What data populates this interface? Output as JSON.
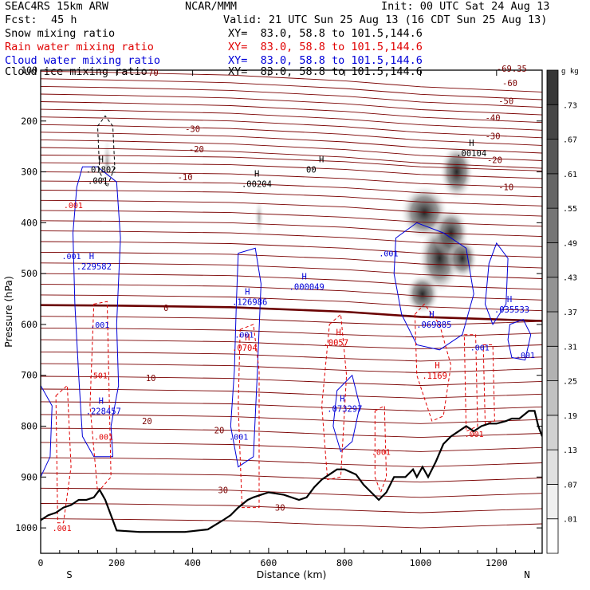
{
  "header": {
    "model": "SEAC4RS 15km ARW",
    "org": "NCAR/MMM",
    "init": "Init: 00 UTC Sat 24 Aug 13",
    "fcst_label": "Fcst:",
    "fcst_value": "45 h",
    "valid": "Valid: 21 UTC Sun 25 Aug 13 (16 CDT Sun 25 Aug 13)"
  },
  "fields": [
    {
      "name": "Snow mixing ratio",
      "xy": "XY=  83.0, 58.8 to 101.5,144.6",
      "color": "#000000"
    },
    {
      "name": "Rain water mixing ratio",
      "xy": "XY=  83.0, 58.8 to 101.5,144.6",
      "color": "#e00000"
    },
    {
      "name": "Cloud water mixing ratio",
      "xy": "XY=  83.0, 58.8 to 101.5,144.6",
      "color": "#0000d8"
    },
    {
      "name": "Cloud ice mixing ratio",
      "xy": "XY=  83.0, 58.8 to 101.5,144.6",
      "color": "#000000"
    }
  ],
  "chart_data": {
    "type": "heatmap",
    "title": "",
    "xlabel": "Distance (km)",
    "ylabel": "Pressure (hPa)",
    "xlim": [
      0,
      1320
    ],
    "ylim": [
      1050,
      100
    ],
    "y_scale": "linear (pressure, inverted)",
    "x_ticks": [
      0,
      200,
      400,
      600,
      800,
      1000,
      1200
    ],
    "y_ticks": [
      1000,
      900,
      800,
      700,
      600,
      500,
      400,
      300,
      200,
      100
    ],
    "x_end_labels": {
      "left": "S",
      "right": "N"
    },
    "colorbar": {
      "unit": "g kg",
      "unit_exp": "-1",
      "ticks": [
        ".01",
        ".07",
        ".13",
        ".19",
        ".25",
        ".31",
        ".37",
        ".43",
        ".49",
        ".55",
        ".61",
        ".67",
        ".73"
      ],
      "colormap": "white-to-black grayscale"
    },
    "terrain_hPa": [
      [
        0,
        985
      ],
      [
        20,
        975
      ],
      [
        40,
        970
      ],
      [
        60,
        960
      ],
      [
        80,
        955
      ],
      [
        100,
        945
      ],
      [
        120,
        945
      ],
      [
        140,
        940
      ],
      [
        155,
        925
      ],
      [
        170,
        945
      ],
      [
        185,
        975
      ],
      [
        200,
        1005
      ],
      [
        260,
        1008
      ],
      [
        300,
        1008
      ],
      [
        380,
        1008
      ],
      [
        440,
        1003
      ],
      [
        480,
        985
      ],
      [
        500,
        975
      ],
      [
        520,
        960
      ],
      [
        545,
        945
      ],
      [
        560,
        940
      ],
      [
        580,
        935
      ],
      [
        600,
        930
      ],
      [
        640,
        935
      ],
      [
        680,
        945
      ],
      [
        700,
        940
      ],
      [
        720,
        920
      ],
      [
        740,
        905
      ],
      [
        760,
        895
      ],
      [
        780,
        885
      ],
      [
        800,
        885
      ],
      [
        830,
        895
      ],
      [
        850,
        915
      ],
      [
        870,
        930
      ],
      [
        890,
        945
      ],
      [
        910,
        930
      ],
      [
        930,
        900
      ],
      [
        960,
        900
      ],
      [
        980,
        885
      ],
      [
        990,
        900
      ],
      [
        1005,
        880
      ],
      [
        1020,
        900
      ],
      [
        1040,
        870
      ],
      [
        1060,
        835
      ],
      [
        1080,
        820
      ],
      [
        1100,
        810
      ],
      [
        1120,
        800
      ],
      [
        1140,
        810
      ],
      [
        1160,
        800
      ],
      [
        1180,
        795
      ],
      [
        1200,
        795
      ],
      [
        1225,
        790
      ],
      [
        1240,
        785
      ],
      [
        1260,
        785
      ],
      [
        1285,
        770
      ],
      [
        1300,
        770
      ],
      [
        1310,
        800
      ],
      [
        1320,
        820
      ]
    ],
    "temperature_contours_C": {
      "interval": 5,
      "labels": [
        "-70",
        "-69.35",
        "-60",
        "-50",
        "-40",
        "-30",
        "-20",
        "-10",
        "0",
        "10",
        "20",
        "30"
      ],
      "zero_isotherm": [
        [
          0,
          562
        ],
        [
          200,
          563
        ],
        [
          500,
          566
        ],
        [
          800,
          575
        ],
        [
          1000,
          585
        ],
        [
          1200,
          590
        ],
        [
          1320,
          593
        ]
      ]
    },
    "maxima": [
      {
        "field": "snow",
        "label": "H",
        "value": ".01802",
        "x": 165,
        "p": 300
      },
      {
        "field": "snow",
        "label": "H",
        "value": ".00204",
        "x": 575,
        "p": 328
      },
      {
        "field": "snow",
        "label": "H",
        "value": "00",
        "x": 745,
        "p": 300
      },
      {
        "field": "snow",
        "label": "H",
        "value": ".00104",
        "x": 1140,
        "p": 268
      },
      {
        "field": "snow",
        "label": "",
        "value": ".001",
        "x": 170,
        "p": 322
      },
      {
        "field": "cloud_water",
        "label": "H",
        "value": ".229582",
        "x": 140,
        "p": 490
      },
      {
        "field": "cloud_water",
        "label": "H",
        "value": ".126986",
        "x": 550,
        "p": 560
      },
      {
        "field": "cloud_water",
        "label": "H",
        "value": ".000049",
        "x": 700,
        "p": 530
      },
      {
        "field": "cloud_water",
        "label": "H",
        "value": ".035533",
        "x": 1240,
        "p": 575
      },
      {
        "field": "cloud_water",
        "label": "H",
        "value": ".069885",
        "x": 1035,
        "p": 605
      },
      {
        "field": "cloud_water",
        "label": "H",
        "value": ".073297",
        "x": 800,
        "p": 770
      },
      {
        "field": "cloud_water",
        "label": "H",
        "value": ".228457",
        "x": 165,
        "p": 775
      },
      {
        "field": "rain",
        "label": "H",
        "value": ".0704",
        "x": 550,
        "p": 650
      },
      {
        "field": "rain",
        "label": "H",
        "value": ".0057",
        "x": 790,
        "p": 640
      },
      {
        "field": "rain",
        "label": "H",
        "value": ".1169",
        "x": 1050,
        "p": 705
      }
    ],
    "series": [
      {
        "name": "Snow mixing ratio",
        "contour_levels": [
          ".001"
        ]
      },
      {
        "name": "Rain water mixing ratio",
        "contour_levels": [
          ".001",
          ".501"
        ]
      },
      {
        "name": "Cloud water mixing ratio",
        "contour_levels": [
          ".001"
        ]
      },
      {
        "name": "Cloud ice mixing ratio",
        "contour_levels": [
          ".001"
        ]
      }
    ]
  }
}
